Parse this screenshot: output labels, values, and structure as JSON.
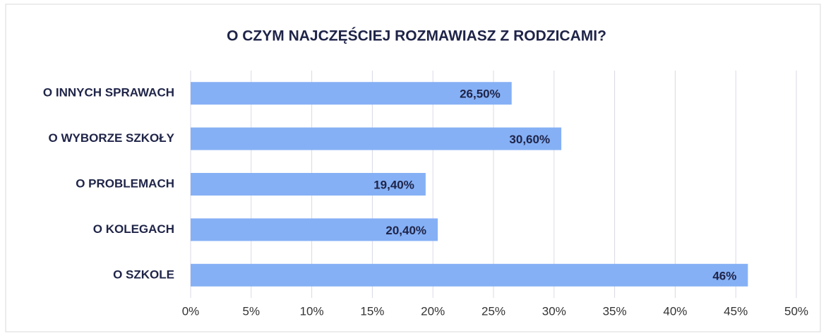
{
  "chart_data": {
    "type": "bar",
    "orientation": "horizontal",
    "title": "O CZYM NAJCZĘŚCIEJ ROZMAWIASZ Z RODZICAMI?",
    "categories": [
      "O INNYCH SPRAWACH",
      "O WYBORZE SZKOŁY",
      "O PROBLEMACH",
      "O KOLEGACH",
      "O SZKOLE"
    ],
    "values": [
      26.5,
      30.6,
      19.4,
      20.4,
      46
    ],
    "value_labels": [
      "26,50%",
      "30,60%",
      "19,40%",
      "20,40%",
      "46%"
    ],
    "color": "#85b0f5",
    "xlim": [
      0,
      50
    ],
    "xticks": [
      {
        "value": 0,
        "label": "0%"
      },
      {
        "value": 5,
        "label": "5%"
      },
      {
        "value": 10,
        "label": "10%"
      },
      {
        "value": 15,
        "label": "15%"
      },
      {
        "value": 20,
        "label": "20%"
      },
      {
        "value": 25,
        "label": "25%"
      },
      {
        "value": 30,
        "label": "30%"
      },
      {
        "value": 35,
        "label": "35%"
      },
      {
        "value": 40,
        "label": "40%"
      },
      {
        "value": 45,
        "label": "45%"
      },
      {
        "value": 50,
        "label": "50%"
      }
    ],
    "grid": true
  }
}
